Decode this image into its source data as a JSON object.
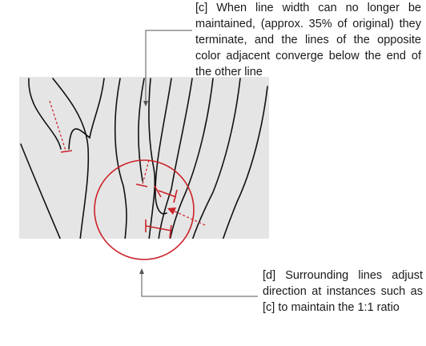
{
  "annotations": {
    "c": "[c]  When line width can no longer be maintained, (approx. 35% of original) they terminate, and the lines of the opposite color adjacent converge below the end of the other line",
    "d": "[d]  Surrounding lines adjust direction at instances such as [c] to maintain the 1:1 ratio"
  },
  "colors": {
    "background": "#ffffff",
    "panel": "#e5e5e5",
    "stroke": "#111111",
    "accent": "#cc2229",
    "leader": "#555555"
  }
}
